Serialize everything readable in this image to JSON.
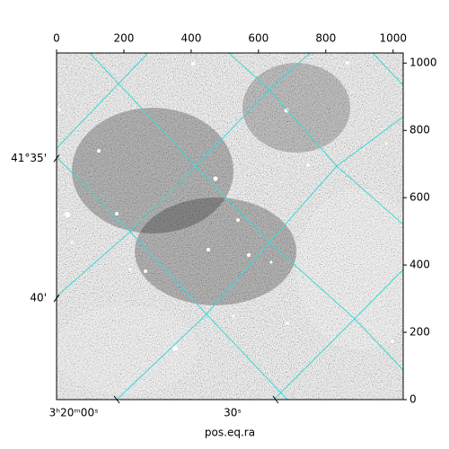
{
  "chart_data": {
    "type": "image",
    "xlabel": "pos.eq.ra",
    "xlim": [
      0,
      1030
    ],
    "ylim": [
      0,
      1030
    ],
    "xticks": [
      0,
      200,
      400,
      600,
      800,
      1000
    ],
    "yticks": [
      0,
      200,
      400,
      600,
      800,
      1000
    ],
    "ra_ticks": [
      {
        "value": 179,
        "label": "3ʰ20ᵐ00ˢ"
      },
      {
        "value": 651,
        "label": "30ˢ"
      }
    ],
    "dec_ticks": [
      {
        "value": 717,
        "label": "41°35'"
      },
      {
        "value": 301,
        "label": "40'"
      }
    ],
    "grid": true,
    "grid_color": "#3fd6d6"
  }
}
